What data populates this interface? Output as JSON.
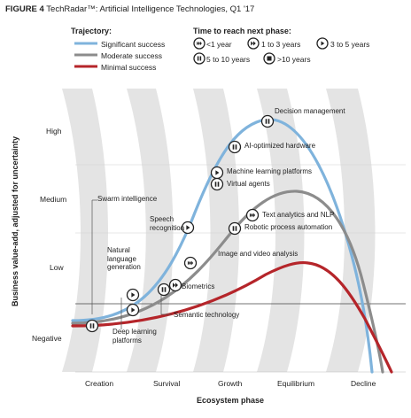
{
  "figure": {
    "label": "FIGURE 4",
    "title": "TechRadar™: Artificial Intelligence Technologies, Q1 '17"
  },
  "legend": {
    "trajectory_title": "Trajectory:",
    "trajectories": [
      {
        "label": "Significant success",
        "color": "#7fb3dc"
      },
      {
        "label": "Moderate success",
        "color": "#8c8c8c"
      },
      {
        "label": "Minimal success",
        "color": "#b5252a"
      }
    ],
    "time_title": "Time to reach next phase:",
    "times": [
      {
        "label": "<1 year",
        "icon": "fast-forward-icon"
      },
      {
        "label": "1 to 3 years",
        "icon": "double-play-icon"
      },
      {
        "label": "3 to 5 years",
        "icon": "play-icon"
      },
      {
        "label": "5 to 10 years",
        "icon": "pause-icon"
      },
      {
        "label": ">10 years",
        "icon": "stop-icon"
      }
    ]
  },
  "axes": {
    "y_title": "Business value-add, adjusted for uncertainty",
    "y_ticks": [
      "High",
      "Medium",
      "Low",
      "Negative"
    ],
    "x_title": "Ecosystem phase",
    "x_ticks": [
      "Creation",
      "Survival",
      "Growth",
      "Equilibrium",
      "Decline"
    ]
  },
  "technologies": [
    {
      "name": "Decision management",
      "icon": "pause-icon"
    },
    {
      "name": "AI-optimized hardware",
      "icon": "pause-icon"
    },
    {
      "name": "Machine learning platforms",
      "icon": "play-icon"
    },
    {
      "name": "Virtual agents",
      "icon": "pause-icon"
    },
    {
      "name": "Swarm intelligence",
      "icon": "none"
    },
    {
      "name": "Speech recognition",
      "icon": "play-icon"
    },
    {
      "name": "Text analytics and NLP",
      "icon": "fast-forward-icon"
    },
    {
      "name": "Robotic process automation",
      "icon": "pause-icon"
    },
    {
      "name": "Natural language generation",
      "icon": "play-icon"
    },
    {
      "name": "Image and video analysis",
      "icon": "fast-forward-icon"
    },
    {
      "name": "Biometrics",
      "icon": "double-play-icon"
    },
    {
      "name": "Semantic technology",
      "icon": "pause-icon"
    },
    {
      "name": "Deep learning platforms",
      "icon": "play-icon"
    },
    {
      "name": "Swarm intelligence marker",
      "icon": "pause-icon"
    }
  ],
  "labels": {
    "speech_l1": "Speech",
    "speech_l2": "recognition",
    "nlg_l1": "Natural",
    "nlg_l2": "language",
    "nlg_l3": "generation",
    "deep_l1": "Deep learning",
    "deep_l2": "platforms"
  }
}
